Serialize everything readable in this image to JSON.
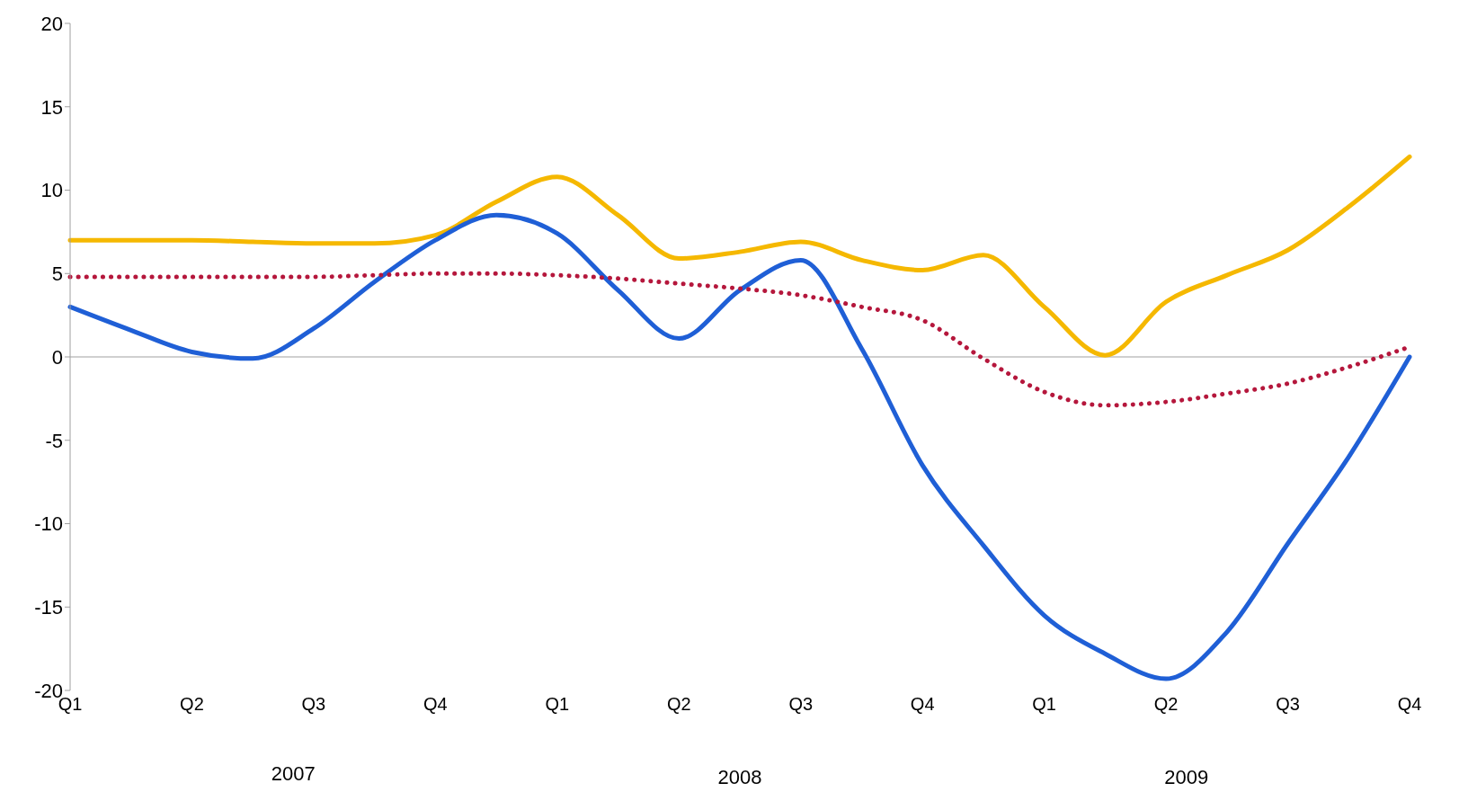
{
  "chart_data": {
    "type": "line",
    "categories": [
      "Q1",
      null,
      "Q2",
      null,
      "Q3",
      null,
      "Q4",
      null,
      "Q1",
      null,
      "Q2",
      null,
      "Q3",
      null,
      "Q4",
      null,
      "Q1",
      null,
      "Q2",
      null,
      "Q3",
      null,
      "Q4"
    ],
    "ylim": [
      -20,
      20
    ],
    "yticks": [
      -20,
      -15,
      -10,
      -5,
      0,
      5,
      10,
      15,
      20
    ],
    "grid": false,
    "legend": false,
    "marker": "none",
    "ref_lines": [
      {
        "axis": "y",
        "value": 0,
        "color": "#a0a0a0"
      }
    ],
    "annotations": [
      "2007",
      "2008",
      "2009"
    ],
    "series": [
      {
        "color": "#f5b800",
        "line_style": "solid",
        "values": [
          7.0,
          7.0,
          7.0,
          6.9,
          6.8,
          6.8,
          7.3,
          9.3,
          10.8,
          8.5,
          5.9,
          6.3,
          6.9,
          5.8,
          5.2,
          6.1,
          3.0,
          0.1,
          3.3,
          4.9,
          6.4,
          9.0,
          12.0
        ]
      },
      {
        "color": "#1f5fd6",
        "line_style": "solid",
        "values": [
          3.0,
          1.6,
          0.3,
          -0.1,
          1.7,
          4.5,
          7.0,
          8.5,
          7.4,
          4.0,
          1.1,
          4.0,
          5.8,
          0.5,
          -6.5,
          -11.3,
          -15.5,
          -17.8,
          -19.3,
          -16.5,
          -11.2,
          -6.0,
          0
        ]
      },
      {
        "color": "#b5173c",
        "line_style": "dotted",
        "values": [
          4.8,
          4.8,
          4.8,
          4.8,
          4.8,
          4.9,
          5.0,
          5.0,
          4.9,
          4.7,
          4.4,
          4.1,
          3.7,
          3.0,
          2.2,
          -0.1,
          -2.1,
          -2.9,
          -2.7,
          -2.2,
          -1.6,
          -0.6,
          0.6
        ]
      }
    ]
  }
}
